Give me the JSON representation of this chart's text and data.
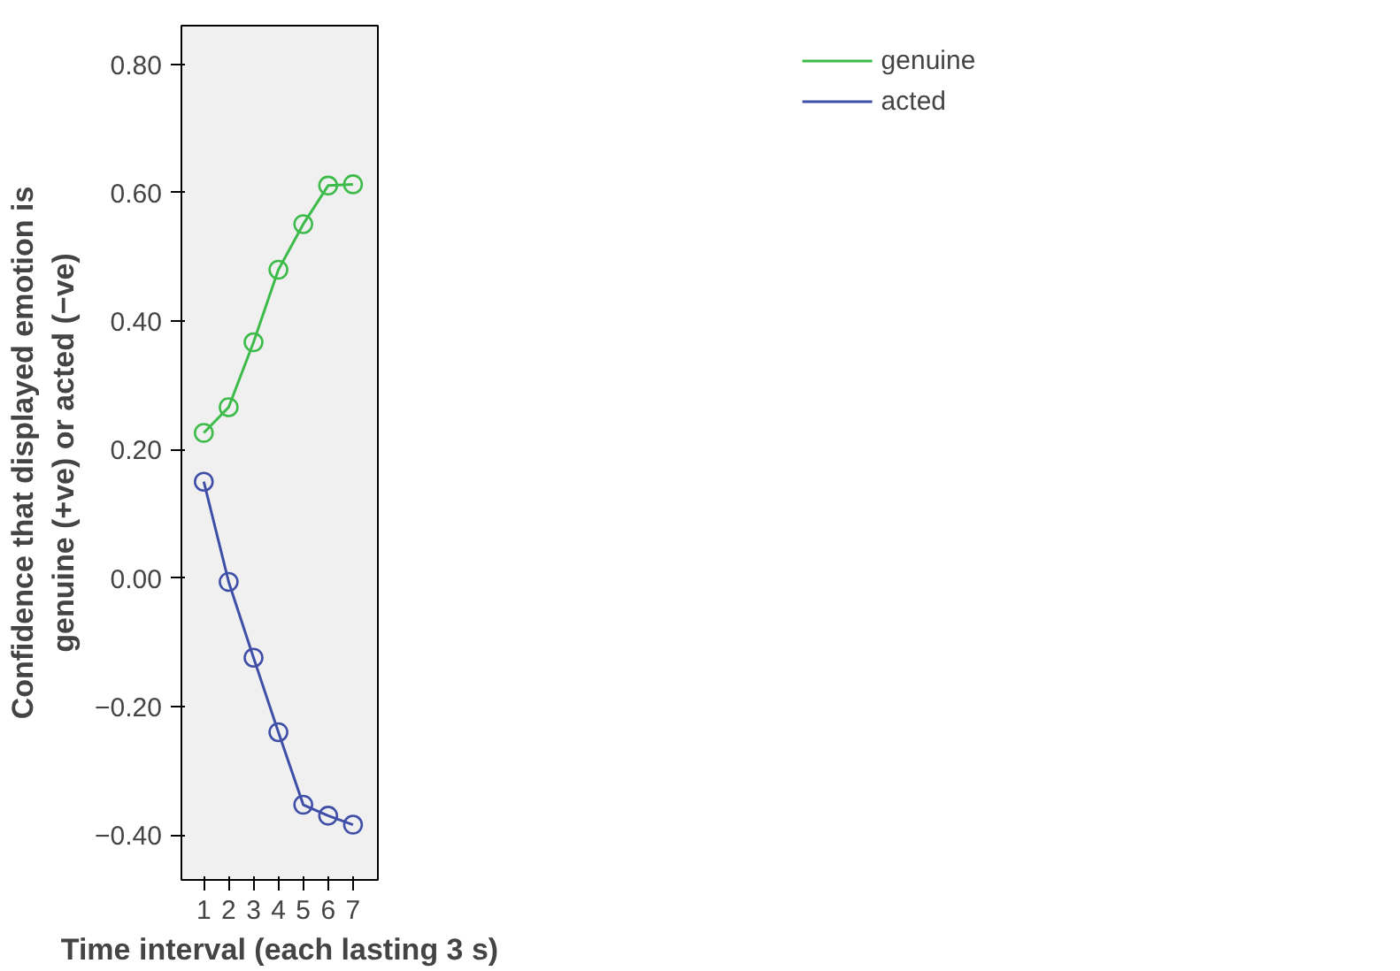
{
  "chart_data": {
    "type": "line",
    "xlabel": "Time interval (each lasting 3 s)",
    "ylabel": "Confidence that displayed emotion is\ngenuine (+ve) or acted (−ve)",
    "x": [
      1,
      2,
      3,
      4,
      5,
      6,
      7
    ],
    "series": [
      {
        "name": "genuine",
        "color": "#3dbb4a",
        "values": [
          0.226,
          0.266,
          0.367,
          0.48,
          0.551,
          0.611,
          0.613
        ]
      },
      {
        "name": "acted",
        "color": "#3f4fa8",
        "values": [
          0.15,
          -0.006,
          -0.124,
          -0.24,
          -0.353,
          -0.37,
          -0.384
        ]
      }
    ],
    "xlim": [
      0.1,
      8
    ],
    "ylim": [
      -0.47,
      0.86
    ],
    "xticks": [
      1,
      2,
      3,
      4,
      5,
      6,
      7
    ],
    "yticks": [
      {
        "value": -0.4,
        "label": "−0.40"
      },
      {
        "value": -0.2,
        "label": "−0.20"
      },
      {
        "value": 0,
        "label": "0.00"
      },
      {
        "value": 0.2,
        "label": "0.20"
      },
      {
        "value": 0.4,
        "label": "0.40"
      },
      {
        "value": 0.6,
        "label": "0.60"
      },
      {
        "value": 0.8,
        "label": "0.80"
      }
    ],
    "marker": "circle",
    "line_style": "solid",
    "grid": false,
    "legend": "top right"
  }
}
